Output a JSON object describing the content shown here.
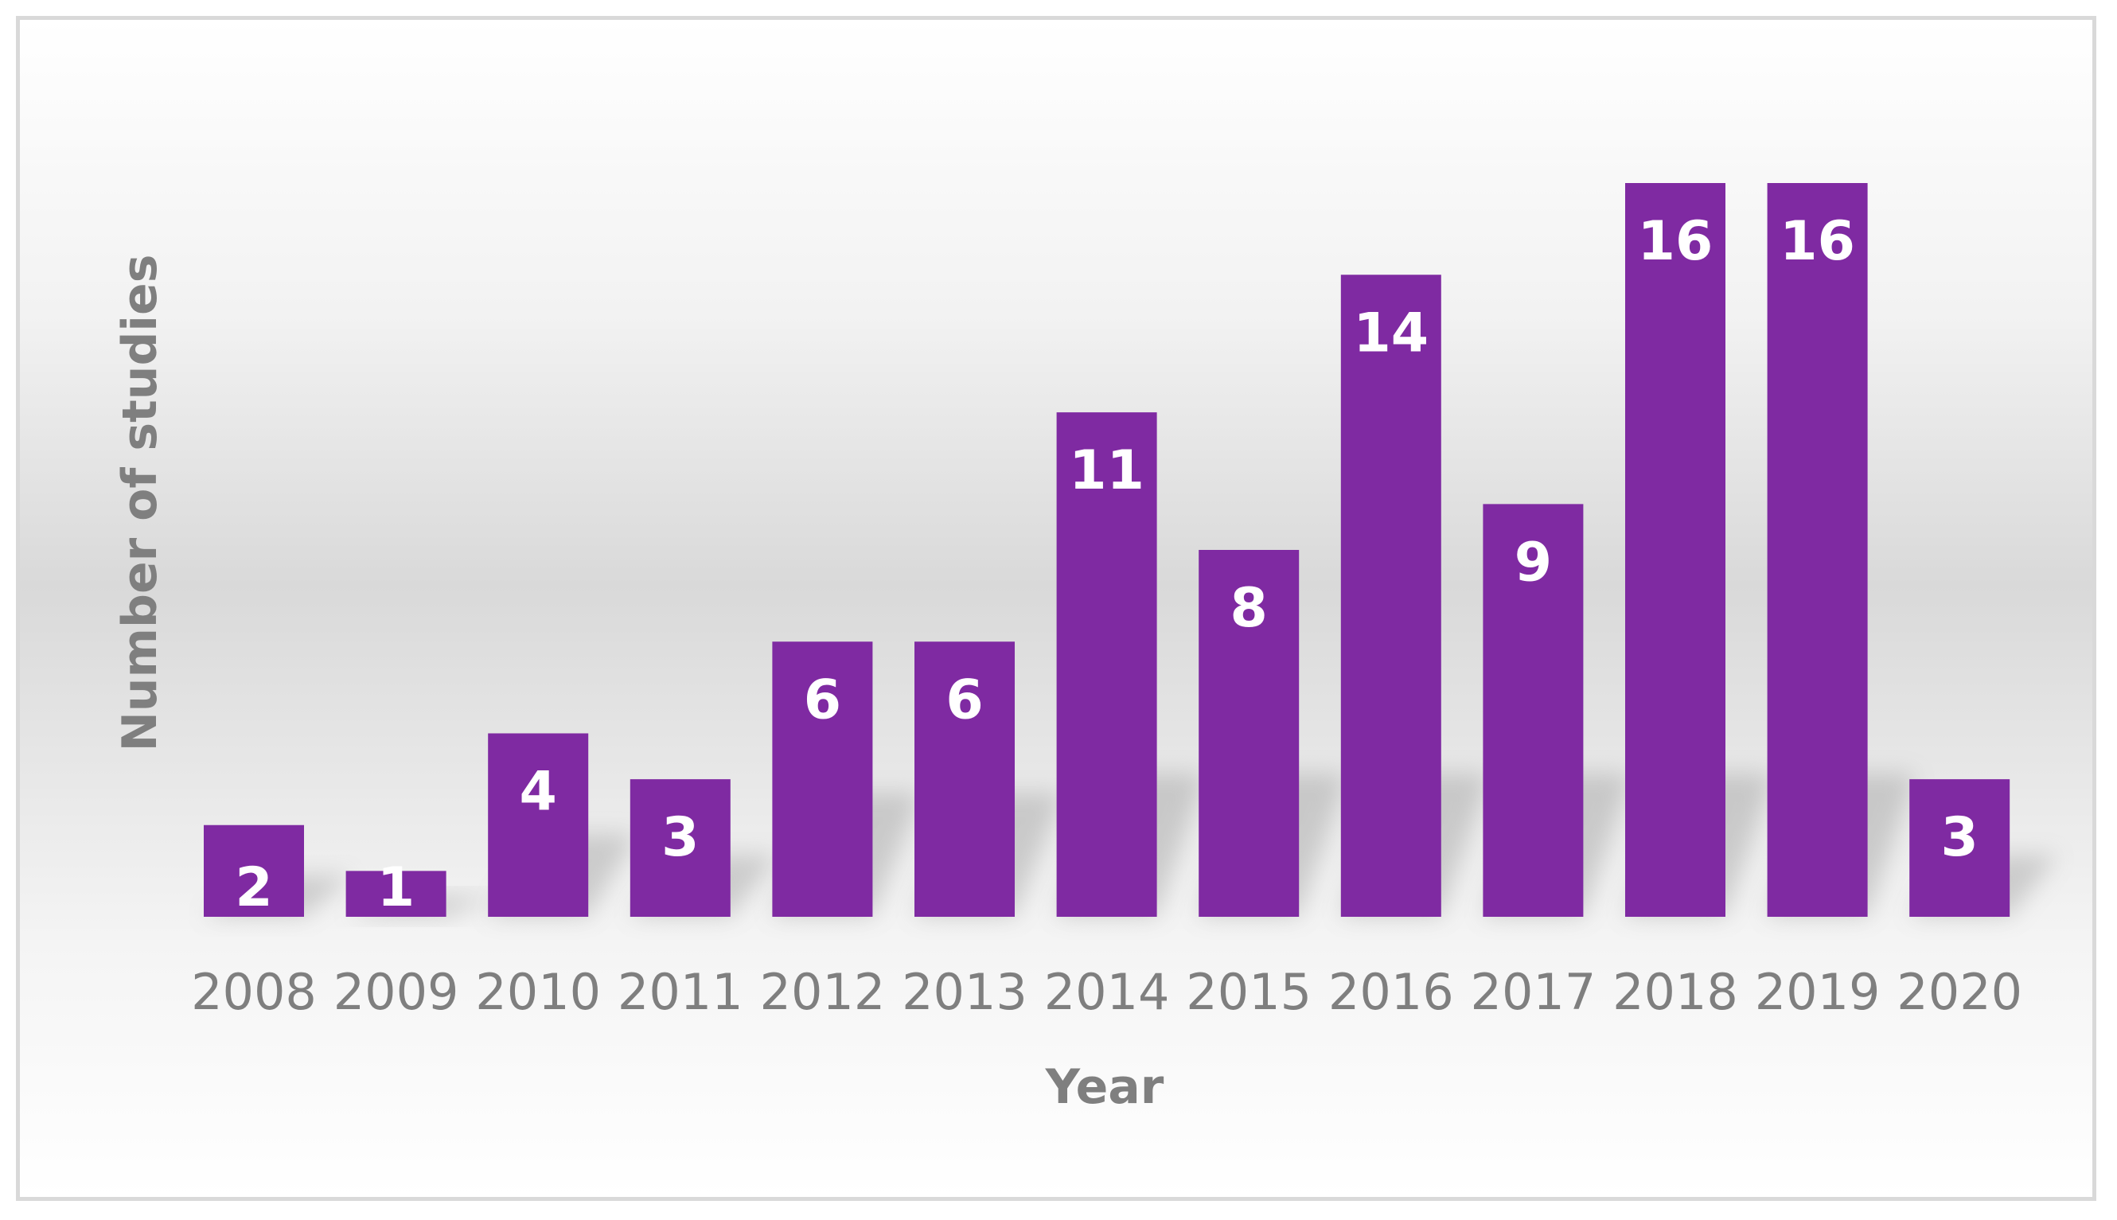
{
  "chart_data": {
    "type": "bar",
    "categories": [
      "2008",
      "2009",
      "2010",
      "2011",
      "2012",
      "2013",
      "2014",
      "2015",
      "2016",
      "2017",
      "2018",
      "2019",
      "2020"
    ],
    "values": [
      2,
      1,
      4,
      3,
      6,
      6,
      11,
      8,
      14,
      9,
      16,
      16,
      3
    ],
    "data_labels": [
      "2",
      "1",
      "4",
      "3",
      "6",
      "6",
      "11",
      "8",
      "14",
      "9",
      "16",
      "16",
      "3"
    ],
    "title": "",
    "xlabel": "Year",
    "ylabel": "Number of studies",
    "ylim": [
      0,
      16
    ],
    "grid": false,
    "legend": "none",
    "bar_color": "#7f2aa2"
  }
}
